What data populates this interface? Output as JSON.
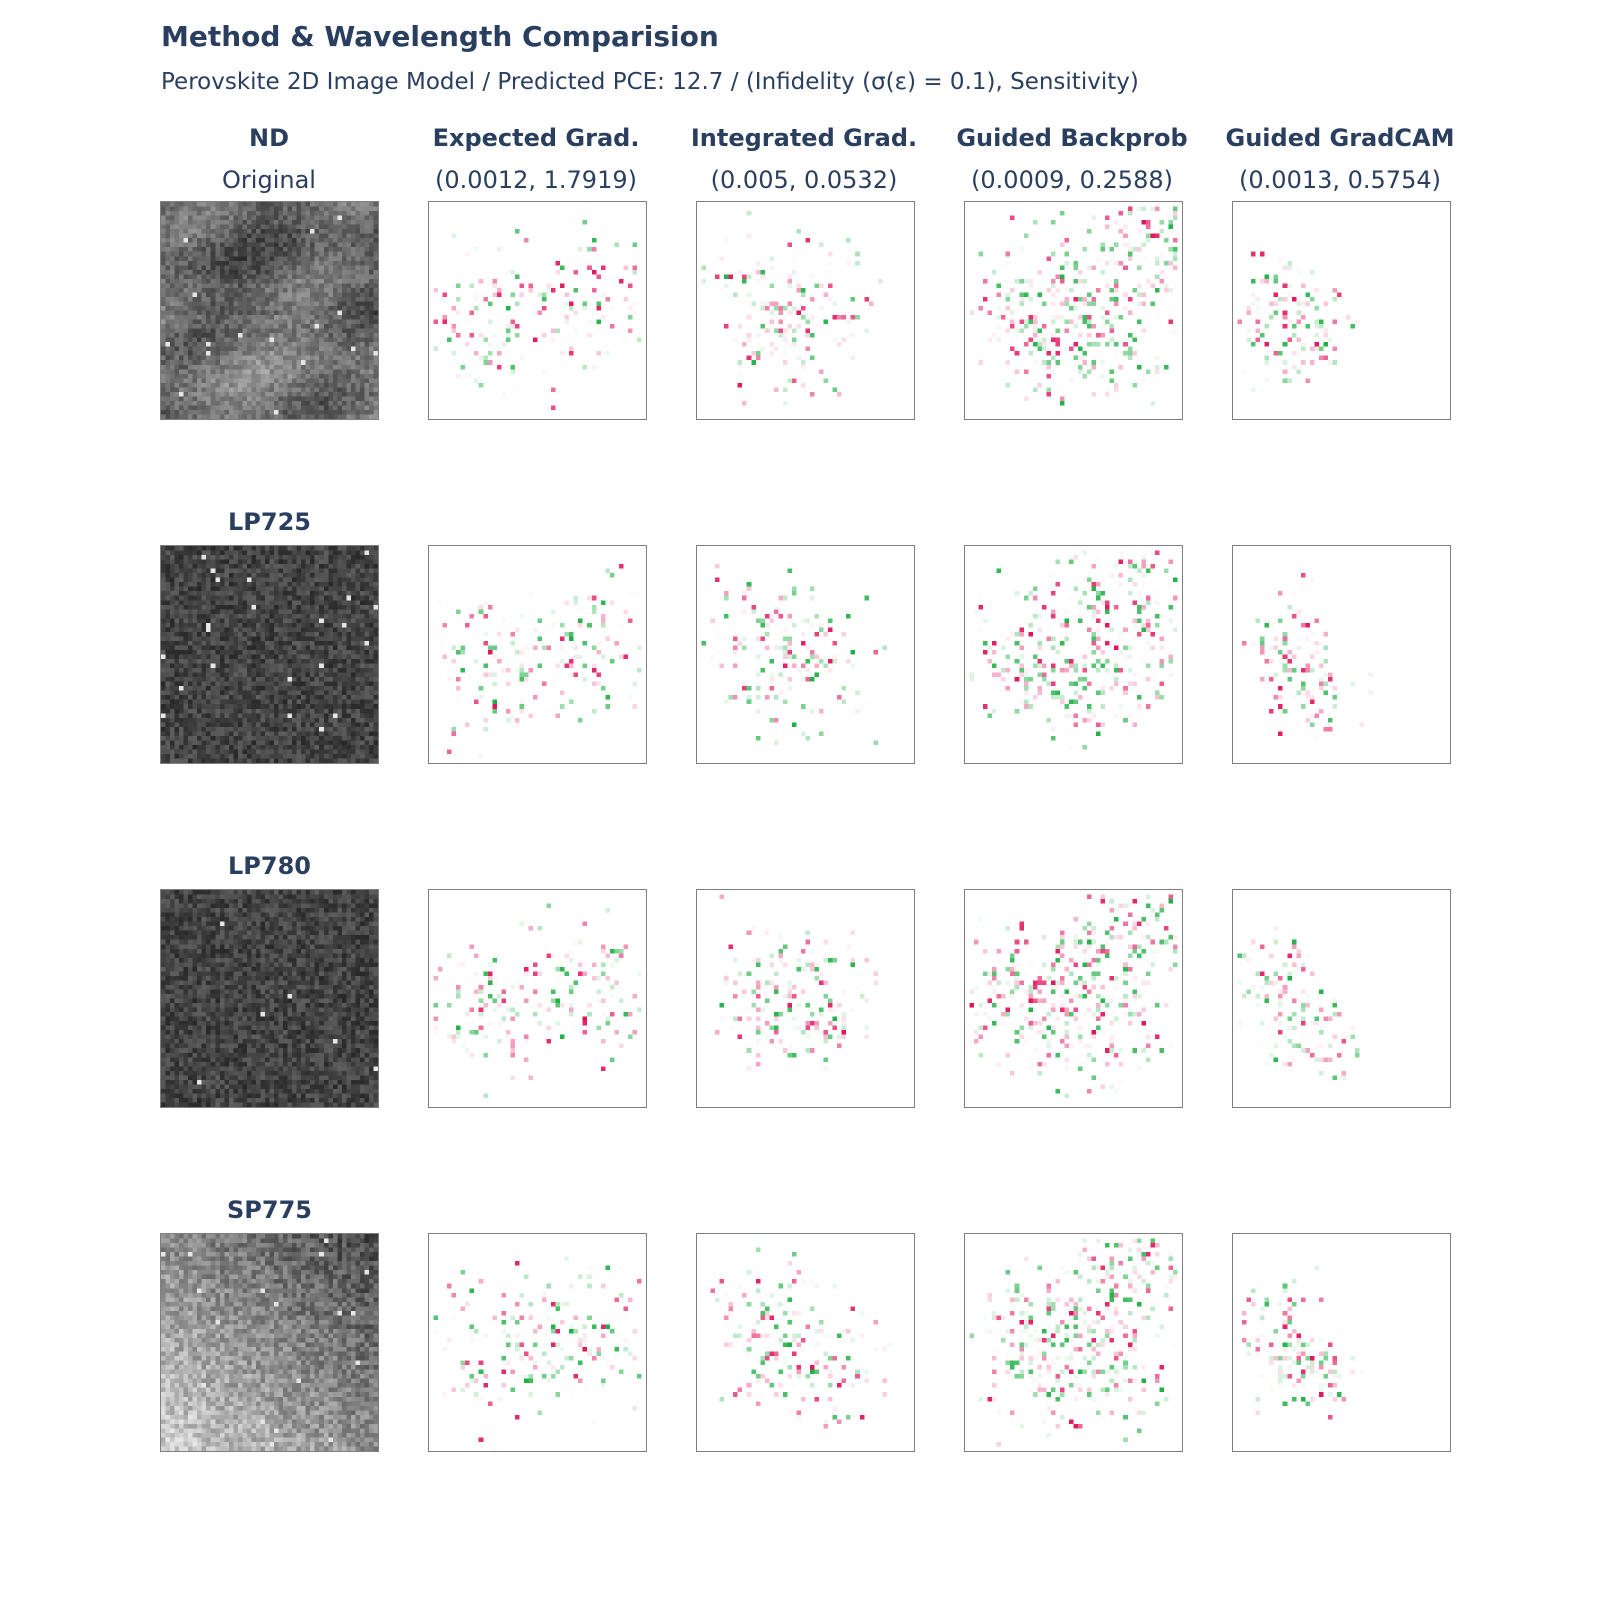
{
  "title": "Method & Wavelength Comparision",
  "subtitle": "Perovskite 2D Image Model / Predicted PCE: 12.7 / (Infidelity (σ(ε) = 0.1), Sensitivity)",
  "columns": [
    {
      "name": "ND",
      "sub": "Original"
    },
    {
      "name": "Expected Grad.",
      "sub": "(0.0012, 1.7919)"
    },
    {
      "name": "Integrated Grad.",
      "sub": "(0.005, 0.0532)"
    },
    {
      "name": "Guided Backprob",
      "sub": "(0.0009, 0.2588)"
    },
    {
      "name": "Guided GradCAM",
      "sub": "(0.0013, 0.5754)"
    }
  ],
  "rows": [
    "ND",
    "LP725",
    "LP780",
    "SP775"
  ],
  "colors": {
    "positive": "#1fb145",
    "negative": "#e2135a",
    "text": "#2a3f5f",
    "border": "#7f7f7f"
  }
}
